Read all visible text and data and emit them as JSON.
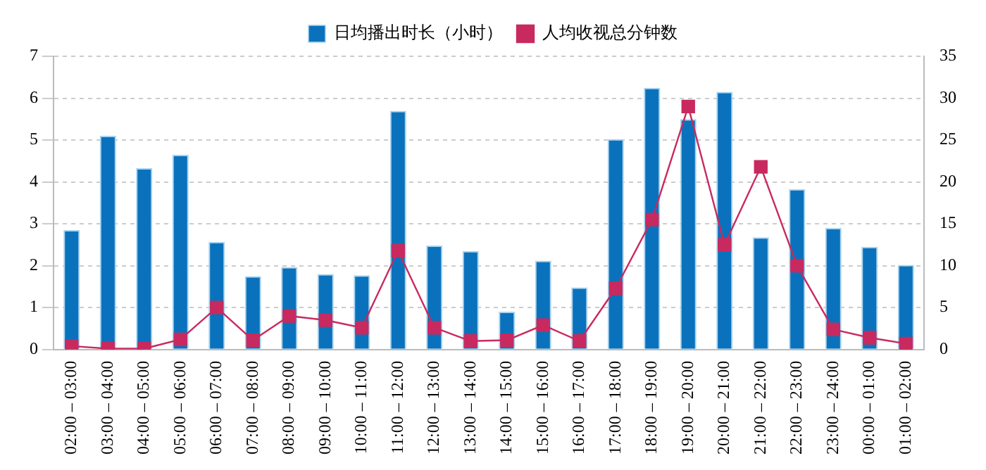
{
  "chart_data": {
    "type": "bar",
    "categories": [
      "02:00 – 03:00",
      "03:00 – 04:00",
      "04:00 – 05:00",
      "05:00 – 06:00",
      "06:00 – 07:00",
      "07:00 – 08:00",
      "08:00 – 09:00",
      "09:00 – 10:00",
      "10:00 – 11:00",
      "11:00 – 12:00",
      "12:00 – 13:00",
      "13:00 – 14:00",
      "14:00 – 15:00",
      "15:00 – 16:00",
      "16:00 – 17:00",
      "17:00 – 18:00",
      "18:00 – 19:00",
      "19:00 – 20:00",
      "20:00 – 21:00",
      "21:00 – 22:00",
      "22:00 – 23:00",
      "23:00 – 24:00",
      "00:00 – 01:00",
      "01:00 – 02:00"
    ],
    "series": [
      {
        "name": "日均播出时长（小时）",
        "color": "#0a72bc",
        "values": [
          2.85,
          5.1,
          4.33,
          4.65,
          2.57,
          1.75,
          1.97,
          1.8,
          1.77,
          5.7,
          2.48,
          2.35,
          0.9,
          2.12,
          1.48,
          5.02,
          6.25,
          5.5,
          6.15,
          2.68,
          3.83,
          2.9,
          2.45,
          2.02
        ]
      },
      {
        "name": "人均收视总分钟数",
        "type": "line",
        "axis": "y2",
        "color": "#c82a5f",
        "marker": "square",
        "values": [
          0.4,
          0.1,
          0.1,
          1.2,
          5,
          1.1,
          4,
          3.5,
          2.6,
          11.8,
          2.6,
          1,
          1.1,
          2.9,
          1,
          7.3,
          15.5,
          29,
          12.5,
          21.8,
          10,
          2.4,
          1.4,
          0.7
        ]
      }
    ],
    "ylim": [
      0,
      7
    ],
    "yticks": [
      0,
      1,
      2,
      3,
      4,
      5,
      6,
      7
    ],
    "y2lim": [
      0,
      35
    ],
    "y2ticks": [
      0,
      5,
      10,
      15,
      20,
      25,
      30,
      35
    ],
    "grid": "y",
    "legend": "top"
  }
}
